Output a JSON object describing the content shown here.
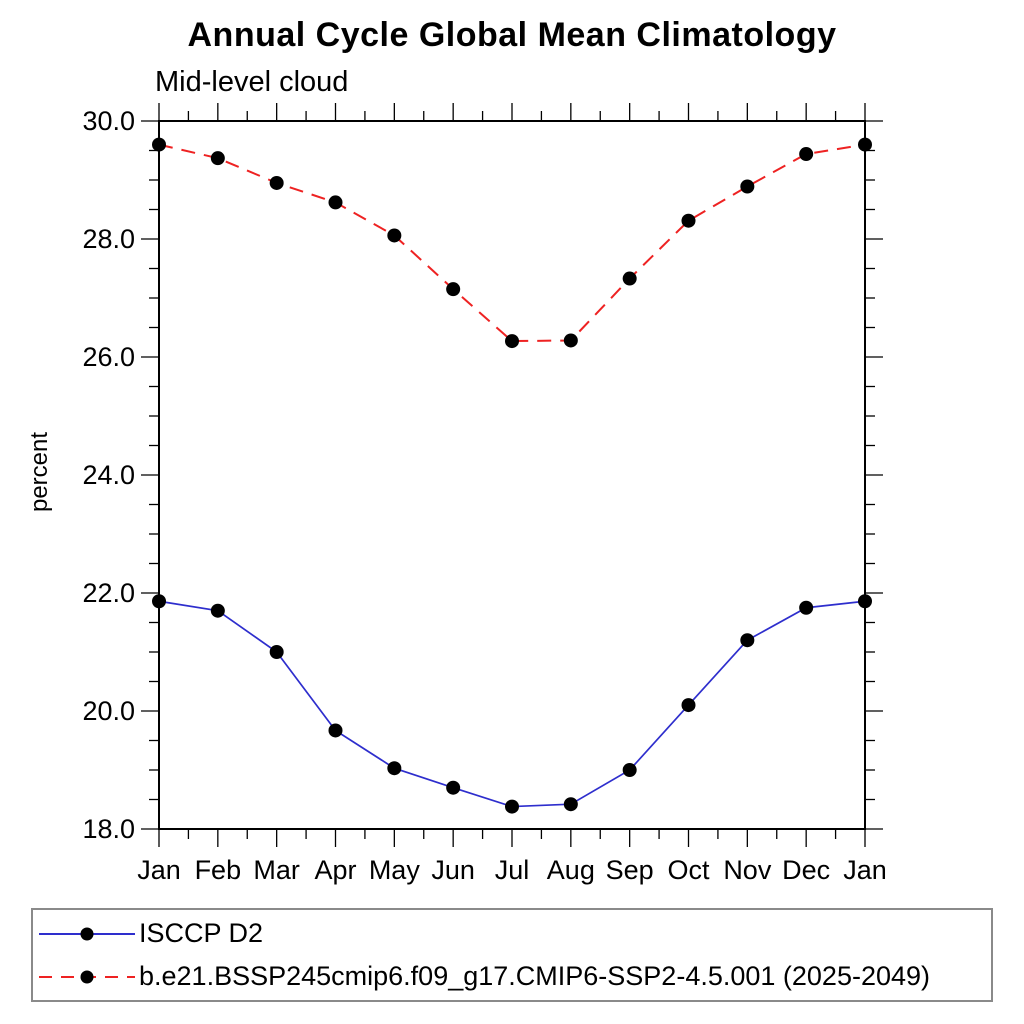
{
  "header": {
    "title": "Annual Cycle Global Mean Climatology",
    "subtitle": "Mid-level cloud"
  },
  "chart_data": {
    "type": "line",
    "title": "Annual Cycle Global Mean Climatology",
    "subtitle": "Mid-level cloud",
    "xlabel": "",
    "ylabel": "percent",
    "categories": [
      "Jan",
      "Feb",
      "Mar",
      "Apr",
      "May",
      "Jun",
      "Jul",
      "Aug",
      "Sep",
      "Oct",
      "Nov",
      "Dec",
      "Jan"
    ],
    "ylim": [
      18.0,
      30.0
    ],
    "ytick_values": [
      18,
      20,
      22,
      24,
      26,
      28,
      30
    ],
    "ytick_labels": [
      "18.0",
      "20.0",
      "22.0",
      "24.0",
      "26.0",
      "28.0",
      "30.0"
    ],
    "y_minor_step": 0.5,
    "x_minor_step": 0.5,
    "grid": false,
    "legend_position": "bottom-left framed box",
    "frame_color": "#000000",
    "series": [
      {
        "name": "ISCCP D2",
        "color": "#2e2ecd",
        "line_style": "solid",
        "marker": "filled-circle",
        "marker_color": "#000000",
        "values": [
          21.86,
          21.7,
          21.0,
          19.67,
          19.03,
          18.7,
          18.38,
          18.42,
          19.0,
          20.1,
          21.2,
          21.75,
          21.86
        ]
      },
      {
        "name": "b.e21.BSSP245cmip6.f09_g17.CMIP6-SSP2-4.5.001 (2025-2049)",
        "color": "#ee2222",
        "line_style": "dashed",
        "marker": "filled-circle",
        "marker_color": "#000000",
        "values": [
          29.6,
          29.37,
          28.95,
          28.62,
          28.06,
          27.15,
          26.27,
          26.28,
          27.33,
          28.31,
          28.89,
          29.44,
          29.6
        ]
      }
    ]
  }
}
